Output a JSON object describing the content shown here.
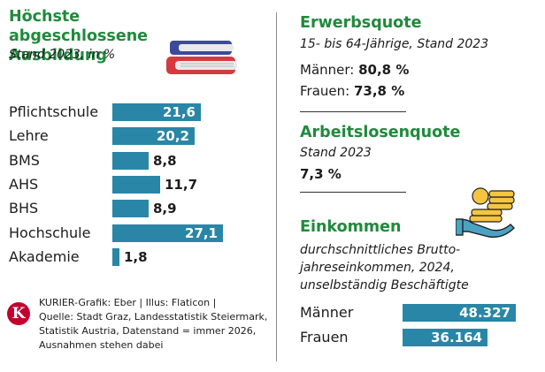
{
  "left_panel": {
    "title_line1": "Höchste abgeschlossene",
    "title_line2": "Ausbildung",
    "subtitle": "Stand 2023, in %"
  },
  "chart_data": [
    {
      "type": "bar",
      "orientation": "horizontal",
      "title": "Höchste abgeschlossene Ausbildung",
      "subtitle": "Stand 2023, in %",
      "categories": [
        "Pflichtschule",
        "Lehre",
        "BMS",
        "AHS",
        "BHS",
        "Hochschule",
        "Akademie"
      ],
      "values": [
        21.6,
        20.2,
        8.8,
        11.7,
        8.9,
        27.1,
        1.8
      ],
      "labels": [
        "21,6",
        "20,2",
        "8,8",
        "11,7",
        "8,9",
        "27,1",
        "1,8"
      ],
      "xlim": [
        0,
        27.1
      ],
      "color": "#2a86a6"
    },
    {
      "type": "bar",
      "orientation": "horizontal",
      "title": "Einkommen",
      "subtitle": "durchschnittliches Brutto-jahreseinkommen, 2024, unselbständig Beschäftigte",
      "categories": [
        "Männer",
        "Frauen"
      ],
      "values": [
        48327,
        36164
      ],
      "labels": [
        "48.327",
        "36.164"
      ],
      "xlim": [
        0,
        48327
      ],
      "color": "#2a86a6"
    }
  ],
  "right_panel": {
    "erwerb_title": "Erwerbsquote",
    "erwerb_sub": "15- bis 64-Jährige, Stand 2023",
    "erwerb_men_label": "Männer: ",
    "erwerb_men_value": "80,8 %",
    "erwerb_women_label": "Frauen: ",
    "erwerb_women_value": "73,8 %",
    "arbeitslos_title": "Arbeitslosenquote",
    "arbeitslos_sub": "Stand 2023",
    "arbeitslos_value": "7,3 %",
    "einkommen_title": "Einkommen",
    "einkommen_sub1": "durchschnittliches Brutto-",
    "einkommen_sub2": "jahreseinkommen, 2024,",
    "einkommen_sub3": "unselbständig Beschäftigte"
  },
  "source": {
    "logo_letter": "K",
    "line1": "KURIER-Grafik: Eber | Illus: Flaticon |",
    "line2": "Quelle: Stadt Graz, Landesstatistik Steiermark,",
    "line3": "Statistik Austria, Datenstand = immer 2026,",
    "line4": "Ausnahmen stehen dabei"
  },
  "icons": [
    "books-icon",
    "money-hand-icon"
  ],
  "colors": {
    "heading": "#1f8a3c",
    "bar": "#2a86a6",
    "logo": "#c2002f"
  }
}
